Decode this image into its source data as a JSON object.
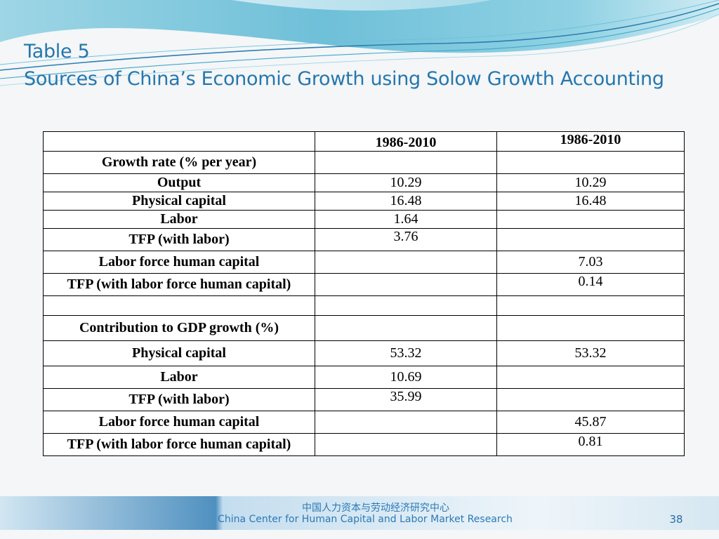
{
  "slide": {
    "title_line1": "Table 5",
    "title_line2": "Sources of China’s Economic Growth using Solow Growth Accounting"
  },
  "table": {
    "headers": [
      "",
      "1986-2010",
      "1986-2010"
    ],
    "rows": [
      [
        "Growth rate (% per year)",
        "",
        ""
      ],
      [
        "Output",
        "10.29",
        "10.29"
      ],
      [
        "Physical capital",
        "16.48",
        "16.48"
      ],
      [
        "Labor",
        "1.64",
        ""
      ],
      [
        "TFP (with labor)",
        "3.76",
        ""
      ],
      [
        "Labor force human capital",
        "",
        "7.03"
      ],
      [
        "TFP (with labor force human capital)",
        "",
        "0.14"
      ],
      [
        "",
        "",
        ""
      ],
      [
        "Contribution to GDP growth (%)",
        "",
        ""
      ],
      [
        "Physical capital",
        "53.32",
        "53.32"
      ],
      [
        "Labor",
        "10.69",
        ""
      ],
      [
        "TFP (with labor)",
        "35.99",
        ""
      ],
      [
        "Labor force human capital",
        "",
        "45.87"
      ],
      [
        "TFP (with labor force human capital)",
        "",
        "0.81"
      ]
    ]
  },
  "footer": {
    "org_cn": "中国人力资本与劳动经济研究中心",
    "org_en": "China Center for Human Capital and Labor Market Research",
    "page_number": "38"
  },
  "colors": {
    "title": "#2577ad",
    "accent_teal": "#3fa8c9",
    "footer_text": "#2a7ab7"
  }
}
